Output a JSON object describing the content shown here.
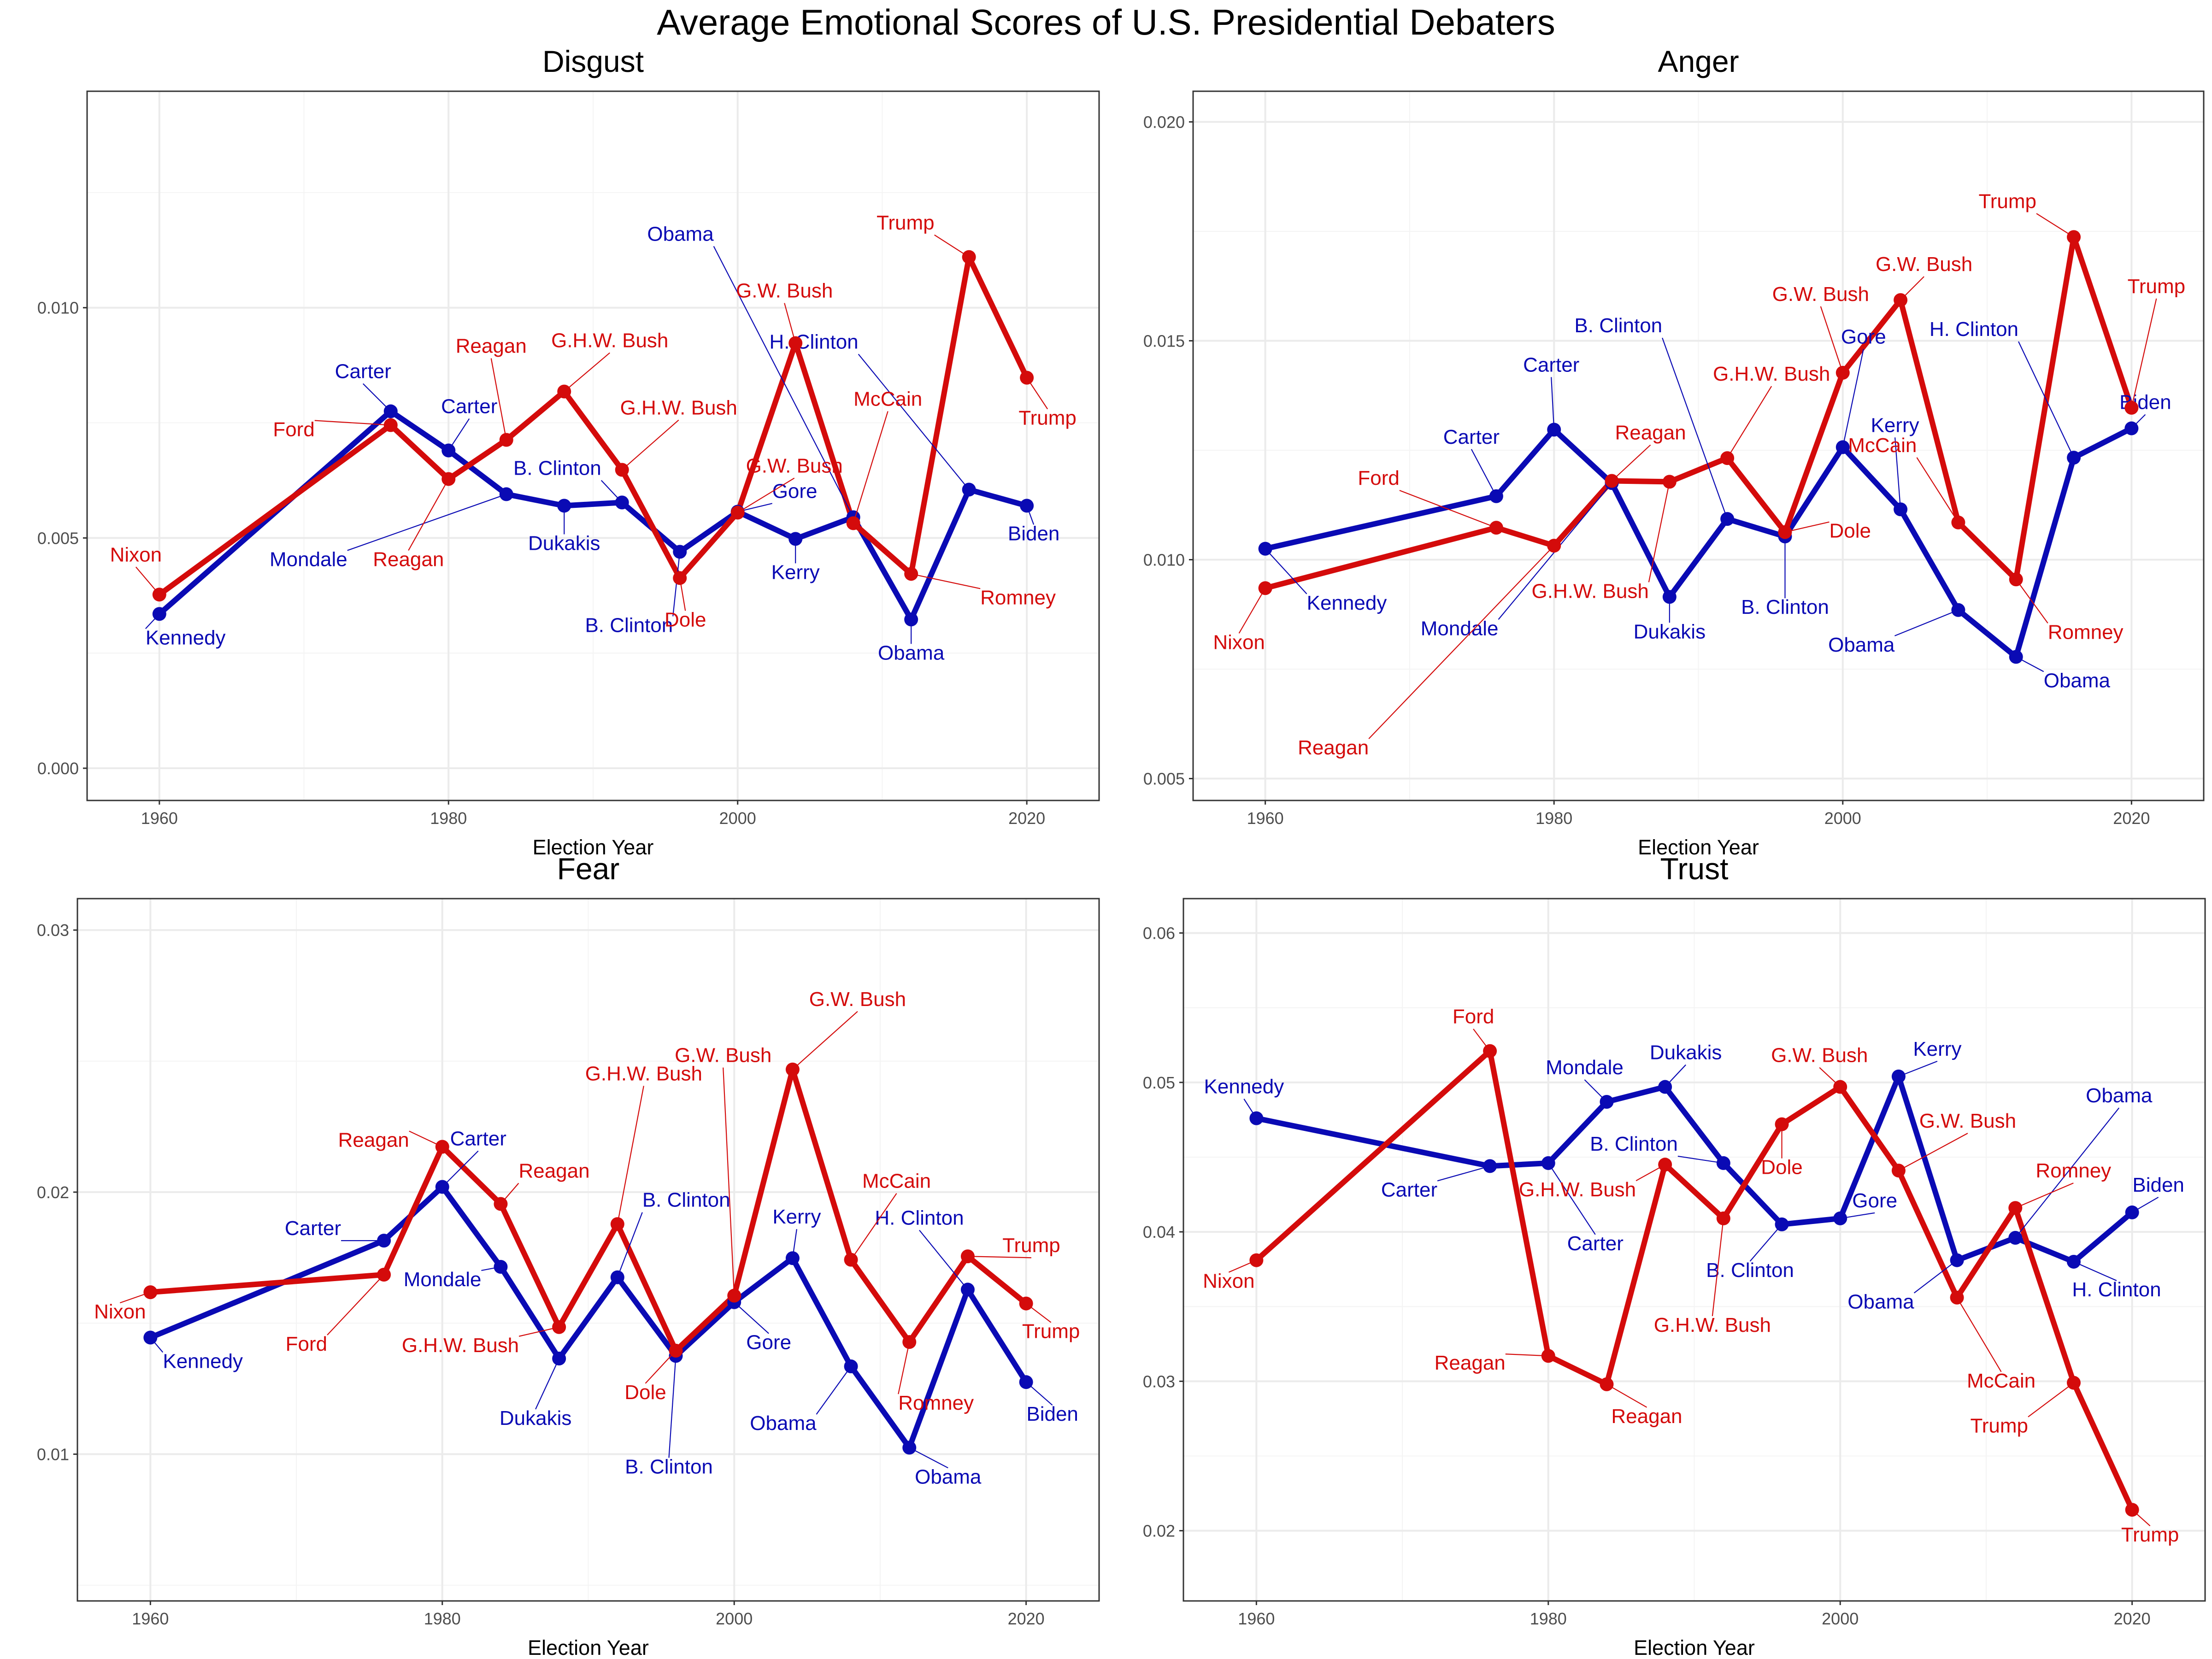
{
  "title": "Average Emotional Scores of U.S. Presidential Debaters",
  "colors": {
    "democrat": "#0a0ab4",
    "republican": "#d40b0b"
  },
  "chart_data": [
    {
      "type": "line",
      "title": "Disgust",
      "xlabel": "Election Year",
      "ylabel": "",
      "xlim": [
        1955,
        2025
      ],
      "ylim": [
        -0.0007,
        0.0147
      ],
      "x_ticks": [
        1960,
        1980,
        2000,
        2020
      ],
      "y_ticks": [
        0.0,
        0.005,
        0.01
      ],
      "y_tick_labels": [
        "0.000",
        "0.005",
        "0.010"
      ],
      "grid": true,
      "series": [
        {
          "party": "democrat",
          "x": [
            1960,
            1976,
            1980,
            1984,
            1988,
            1992,
            1996,
            2000,
            2004,
            2008,
            2012,
            2016,
            2020
          ],
          "y": [
            0.00335,
            0.00775,
            0.0069,
            0.00595,
            0.0057,
            0.00577,
            0.0047,
            0.00557,
            0.00498,
            0.00545,
            0.00323,
            0.00605,
            0.0057
          ],
          "labels": [
            "Kennedy",
            "Carter",
            "Carter",
            "Mondale",
            "Dukakis",
            "B. Clinton",
            "B. Clinton",
            "Gore",
            "Kerry",
            "Obama",
            "Obama",
            "H. Clinton",
            "Biden"
          ]
        },
        {
          "party": "republican",
          "x": [
            1960,
            1976,
            1980,
            1984,
            1988,
            1992,
            1996,
            2000,
            2004,
            2008,
            2012,
            2016,
            2020
          ],
          "y": [
            0.00377,
            0.00745,
            0.00628,
            0.00713,
            0.00818,
            0.00648,
            0.00413,
            0.00555,
            0.00923,
            0.00532,
            0.00422,
            0.0111,
            0.00848
          ],
          "labels": [
            "Nixon",
            "Ford",
            "Reagan",
            "Reagan",
            "G.H.W. Bush",
            "G.H.W. Bush",
            "Dole",
            "G.W. Bush",
            "G.W. Bush",
            "McCain",
            "Romney",
            "Trump",
            "Trump"
          ]
        }
      ]
    },
    {
      "type": "line",
      "title": "Anger",
      "xlabel": "Election Year",
      "ylabel": "",
      "xlim": [
        1955,
        2025
      ],
      "ylim": [
        0.0045,
        0.0207
      ],
      "x_ticks": [
        1960,
        1980,
        2000,
        2020
      ],
      "y_ticks": [
        0.005,
        0.01,
        0.015,
        0.02
      ],
      "y_tick_labels": [
        "0.005",
        "0.010",
        "0.015",
        "0.020"
      ],
      "grid": true,
      "series": [
        {
          "party": "democrat",
          "x": [
            1960,
            1976,
            1980,
            1984,
            1988,
            1992,
            1996,
            2000,
            2004,
            2008,
            2012,
            2016,
            2020
          ],
          "y": [
            0.01025,
            0.01145,
            0.01297,
            0.01175,
            0.00915,
            0.01093,
            0.01053,
            0.01257,
            0.01115,
            0.00885,
            0.00778,
            0.01233,
            0.013
          ],
          "labels": [
            "Kennedy",
            "Carter",
            "Carter",
            "Mondale",
            "Dukakis",
            "B. Clinton",
            "B. Clinton",
            "Gore",
            "Kerry",
            "Obama",
            "Obama",
            "H. Clinton",
            "Biden"
          ]
        },
        {
          "party": "republican",
          "x": [
            1960,
            1976,
            1980,
            1984,
            1988,
            1992,
            1996,
            2000,
            2004,
            2008,
            2012,
            2016,
            2020
          ],
          "y": [
            0.00935,
            0.01073,
            0.01032,
            0.0118,
            0.01178,
            0.01232,
            0.01063,
            0.01427,
            0.01593,
            0.01085,
            0.00955,
            0.01737,
            0.01347
          ],
          "labels": [
            "Nixon",
            "Ford",
            "Reagan",
            "Reagan",
            "G.H.W. Bush",
            "G.H.W. Bush",
            "Dole",
            "G.W. Bush",
            "G.W. Bush",
            "McCain",
            "Romney",
            "Trump",
            "Trump"
          ]
        }
      ]
    },
    {
      "type": "line",
      "title": "Fear",
      "xlabel": "Election Year",
      "ylabel": "",
      "xlim": [
        1955,
        2025
      ],
      "ylim": [
        0.0044,
        0.0312
      ],
      "x_ticks": [
        1960,
        1980,
        2000,
        2020
      ],
      "y_ticks": [
        0.01,
        0.02,
        0.03
      ],
      "y_tick_labels": [
        "0.01",
        "0.02",
        "0.03"
      ],
      "grid": true,
      "series": [
        {
          "party": "democrat",
          "x": [
            1960,
            1976,
            1980,
            1984,
            1988,
            1992,
            1996,
            2000,
            2004,
            2008,
            2012,
            2016,
            2020
          ],
          "y": [
            0.01445,
            0.01815,
            0.0202,
            0.01715,
            0.01365,
            0.01675,
            0.01375,
            0.0158,
            0.01748,
            0.01335,
            0.01025,
            0.01628,
            0.01275
          ],
          "labels": [
            "Kennedy",
            "Carter",
            "Carter",
            "Mondale",
            "Dukakis",
            "B. Clinton",
            "B. Clinton",
            "Gore",
            "Kerry",
            "Obama",
            "Obama",
            "H. Clinton",
            "Biden"
          ]
        },
        {
          "party": "republican",
          "x": [
            1960,
            1976,
            1980,
            1984,
            1988,
            1992,
            1996,
            2000,
            2004,
            2008,
            2012,
            2016,
            2020
          ],
          "y": [
            0.01618,
            0.01685,
            0.02173,
            0.01955,
            0.01485,
            0.01878,
            0.01395,
            0.01605,
            0.02468,
            0.01742,
            0.01428,
            0.01755,
            0.01575
          ],
          "labels": [
            "Nixon",
            "Ford",
            "Reagan",
            "Reagan",
            "G.H.W. Bush",
            "G.H.W. Bush",
            "Dole",
            "G.W. Bush",
            "G.W. Bush",
            "McCain",
            "Romney",
            "Trump",
            "Trump"
          ]
        }
      ]
    },
    {
      "type": "line",
      "title": "Trust",
      "xlabel": "Election Year",
      "ylabel": "",
      "xlim": [
        1955,
        2025
      ],
      "ylim": [
        0.0153,
        0.0623
      ],
      "x_ticks": [
        1960,
        1980,
        2000,
        2020
      ],
      "y_ticks": [
        0.02,
        0.03,
        0.04,
        0.05,
        0.06
      ],
      "y_tick_labels": [
        "0.02",
        "0.03",
        "0.04",
        "0.05",
        "0.06"
      ],
      "grid": true,
      "series": [
        {
          "party": "democrat",
          "x": [
            1960,
            1976,
            1980,
            1984,
            1988,
            1992,
            1996,
            2000,
            2004,
            2008,
            2012,
            2016,
            2020
          ],
          "y": [
            0.0476,
            0.0444,
            0.0446,
            0.0487,
            0.0497,
            0.0446,
            0.0405,
            0.0409,
            0.0504,
            0.0381,
            0.0396,
            0.038,
            0.0413
          ],
          "labels": [
            "Kennedy",
            "Carter",
            "Carter",
            "Mondale",
            "Dukakis",
            "B. Clinton",
            "B. Clinton",
            "Gore",
            "Kerry",
            "Obama",
            "Obama",
            "H. Clinton",
            "Biden"
          ]
        },
        {
          "party": "republican",
          "x": [
            1960,
            1976,
            1980,
            1984,
            1988,
            1992,
            1996,
            2000,
            2004,
            2008,
            2012,
            2016,
            2020
          ],
          "y": [
            0.0381,
            0.0521,
            0.0317,
            0.0298,
            0.0445,
            0.0409,
            0.0472,
            0.0497,
            0.0441,
            0.0356,
            0.0416,
            0.0299,
            0.0214
          ],
          "labels": [
            "Nixon",
            "Ford",
            "Reagan",
            "Reagan",
            "G.H.W. Bush",
            "G.H.W. Bush",
            "Dole",
            "G.W. Bush",
            "G.W. Bush",
            "McCain",
            "Romney",
            "Trump",
            "Trump"
          ]
        }
      ]
    }
  ]
}
